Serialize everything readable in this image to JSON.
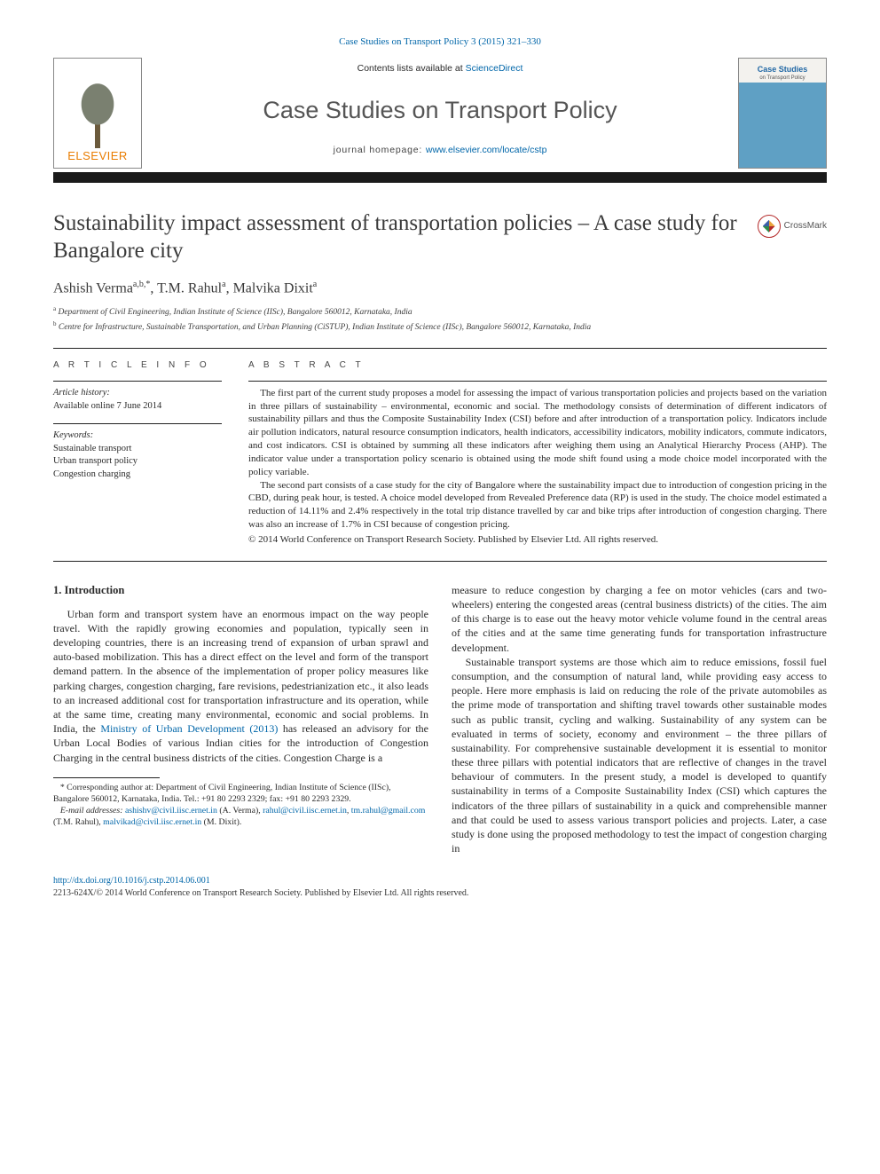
{
  "citation": "Case Studies on Transport Policy 3 (2015) 321–330",
  "header": {
    "contents_prefix": "Contents lists available at ",
    "contents_link": "ScienceDirect",
    "journal_title": "Case Studies on Transport Policy",
    "homepage_prefix": "journal homepage: ",
    "homepage_url": "www.elsevier.com/locate/cstp",
    "publisher_logo_text": "ELSEVIER",
    "cover_label": "Case Studies",
    "cover_sub": "on Transport Policy"
  },
  "crossmark_label": "CrossMark",
  "article": {
    "title": "Sustainability impact assessment of transportation policies – A case study for Bangalore city",
    "authors_html": "Ashish Verma",
    "author1": "Ashish Verma",
    "author1_sup": "a,b,*",
    "author2": ", T.M. Rahul",
    "author2_sup": "a",
    "author3": ", Malvika Dixit",
    "author3_sup": "a",
    "affil_a": "Department of Civil Engineering, Indian Institute of Science (IISc), Bangalore 560012, Karnataka, India",
    "affil_b": "Centre for Infrastructure, Sustainable Transportation, and Urban Planning (CiSTUP), Indian Institute of Science (IISc), Bangalore 560012, Karnataka, India"
  },
  "info": {
    "heading": "A R T I C L E   I N F O",
    "history_label": "Article history:",
    "history_line": "Available online 7 June 2014",
    "keywords_label": "Keywords:",
    "keywords": [
      "Sustainable transport",
      "Urban transport policy",
      "Congestion charging"
    ]
  },
  "abstract": {
    "heading": "A B S T R A C T",
    "p1": "The first part of the current study proposes a model for assessing the impact of various transportation policies and projects based on the variation in three pillars of sustainability – environmental, economic and social. The methodology consists of determination of different indicators of sustainability pillars and thus the Composite Sustainability Index (CSI) before and after introduction of a transportation policy. Indicators include air pollution indicators, natural resource consumption indicators, health indicators, accessibility indicators, mobility indicators, commute indicators, and cost indicators. CSI is obtained by summing all these indicators after weighing them using an Analytical Hierarchy Process (AHP). The indicator value under a transportation policy scenario is obtained using the mode shift found using a mode choice model incorporated with the policy variable.",
    "p2": "The second part consists of a case study for the city of Bangalore where the sustainability impact due to introduction of congestion pricing in the CBD, during peak hour, is tested. A choice model developed from Revealed Preference data (RP) is used in the study. The choice model estimated a reduction of 14.11% and 2.4% respectively in the total trip distance travelled by car and bike trips after introduction of congestion charging. There was also an increase of 1.7% in CSI because of congestion pricing.",
    "copyright": "© 2014 World Conference on Transport Research Society. Published by Elsevier Ltd. All rights reserved."
  },
  "body": {
    "section_no": "1. Introduction",
    "col1_p1a": "Urban form and transport system have an enormous impact on the way people travel. With the rapidly growing economies and population, typically seen in developing countries, there is an increasing trend of expansion of urban sprawl and auto-based mobilization. This has a direct effect on the level and form of the transport demand pattern. In the absence of the implementation of proper policy measures like parking charges, congestion charging, fare revisions, pedestrianization etc., it also leads to an increased additional cost for transportation infrastructure and its operation, while at the same time, creating many environmental, economic and social problems. In India, the ",
    "ref1": "Ministry of Urban Development (2013)",
    "col1_p1b": " has released an advisory for the Urban Local Bodies of various Indian cities for the introduction of Congestion Charging in the central business districts of the cities. Congestion Charge is a ",
    "col2_p1": "measure to reduce congestion by charging a fee on motor vehicles (cars and two-wheelers) entering the congested areas (central business districts) of the cities. The aim of this charge is to ease out the heavy motor vehicle volume found in the central areas of the cities and at the same time generating funds for transportation infrastructure development.",
    "col2_p2": "Sustainable transport systems are those which aim to reduce emissions, fossil fuel consumption, and the consumption of natural land, while providing easy access to people. Here more emphasis is laid on reducing the role of the private automobiles as the prime mode of transportation and shifting travel towards other sustainable modes such as public transit, cycling and walking. Sustainability of any system can be evaluated in terms of society, economy and environment – the three pillars of sustainability. For comprehensive sustainable development it is essential to monitor these three pillars with potential indicators that are reflective of changes in the travel behaviour of commuters. In the present study, a model is developed to quantify sustainability in terms of a Composite Sustainability Index (CSI) which captures the indicators of the three pillars of sustainability in a quick and comprehensible manner and that could be used to assess various transport policies and projects. Later, a case study is done using the proposed methodology to test the impact of congestion charging in"
  },
  "footnote": {
    "corr": "* Corresponding author at: Department of Civil Engineering, Indian Institute of Science (IISc), Bangalore 560012, Karnataka, India. Tel.: +91 80 2293 2329; fax: +91 80 2293 2329.",
    "emails_label": "E-mail addresses: ",
    "e1": "ashishv@civil.iisc.ernet.in",
    "e1_who": " (A. Verma), ",
    "e2": "rahul@civil.iisc.ernet.in",
    "e2_sep": ", ",
    "e3": "tm.rahul@gmail.com",
    "e3_who": " (T.M. Rahul), ",
    "e4": "malvikad@civil.iisc.ernet.in",
    "e4_who": " (M. Dixit)."
  },
  "footer": {
    "doi": "http://dx.doi.org/10.1016/j.cstp.2014.06.001",
    "issn_line": "2213-624X/© 2014 World Conference on Transport Research Society. Published by Elsevier Ltd. All rights reserved."
  },
  "colors": {
    "link": "#0066a9",
    "elsevier_orange": "#e97c00",
    "text": "#2a2a2a",
    "rule": "#222222"
  }
}
